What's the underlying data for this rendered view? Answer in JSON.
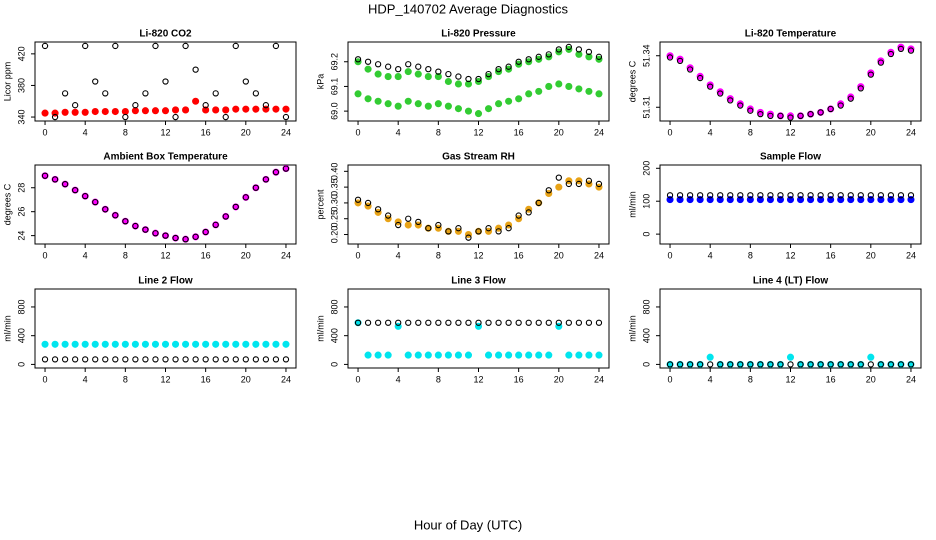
{
  "title": "HDP_140702  Average Diagnostics",
  "xlabel": "Hour of Day (UTC)",
  "chart_data": [
    {
      "type": "scatter",
      "title": "Li-820 CO2",
      "ylabel": "Licor ppm",
      "xlim": [
        -1,
        25
      ],
      "xticks": [
        0,
        4,
        8,
        12,
        16,
        20,
        24
      ],
      "ylim": [
        335,
        435
      ],
      "yticks": [
        340,
        380,
        420
      ],
      "x": [
        0,
        1,
        2,
        3,
        4,
        5,
        6,
        7,
        8,
        9,
        10,
        11,
        12,
        13,
        14,
        15,
        16,
        17,
        18,
        19,
        20,
        21,
        22,
        23,
        24
      ],
      "series": [
        {
          "color": "#ff0000",
          "filled": true,
          "values": [
            345,
            345,
            346,
            346,
            346,
            347,
            347,
            347,
            347,
            348,
            348,
            348,
            348,
            349,
            349,
            360,
            349,
            349,
            349,
            350,
            350,
            350,
            350,
            350,
            350
          ]
        },
        {
          "color": "#000000",
          "filled": false,
          "values": [
            430,
            340,
            370,
            355,
            430,
            385,
            370,
            430,
            340,
            355,
            370,
            430,
            385,
            340,
            430,
            400,
            355,
            370,
            340,
            430,
            385,
            370,
            355,
            430,
            340
          ]
        }
      ]
    },
    {
      "type": "scatter",
      "title": "Li-820 Pressure",
      "ylabel": "kPa",
      "xlim": [
        -1,
        25
      ],
      "xticks": [
        0,
        4,
        8,
        12,
        16,
        20,
        24
      ],
      "ylim": [
        68.96,
        69.28
      ],
      "yticks": [
        {
          "value": 69,
          "label": "69.0"
        },
        69.1,
        69.2
      ],
      "x": [
        0,
        1,
        2,
        3,
        4,
        5,
        6,
        7,
        8,
        9,
        10,
        11,
        12,
        13,
        14,
        15,
        16,
        17,
        18,
        19,
        20,
        21,
        22,
        23,
        24
      ],
      "series": [
        {
          "color": "#33cc33",
          "filled": true,
          "values": [
            69.2,
            69.17,
            69.15,
            69.14,
            69.14,
            69.16,
            69.15,
            69.14,
            69.14,
            69.12,
            69.11,
            69.11,
            69.12,
            69.14,
            69.16,
            69.17,
            69.19,
            69.2,
            69.21,
            69.22,
            69.24,
            69.25,
            69.23,
            69.22,
            69.21
          ]
        },
        {
          "color": "#33cc33",
          "filled": true,
          "values": [
            69.07,
            69.05,
            69.04,
            69.03,
            69.02,
            69.04,
            69.03,
            69.02,
            69.03,
            69.02,
            69.01,
            69.0,
            68.99,
            69.01,
            69.03,
            69.04,
            69.05,
            69.07,
            69.08,
            69.1,
            69.11,
            69.1,
            69.09,
            69.08,
            69.07
          ]
        },
        {
          "color": "#000000",
          "filled": false,
          "values": [
            69.21,
            69.2,
            69.19,
            69.18,
            69.17,
            69.19,
            69.18,
            69.17,
            69.16,
            69.15,
            69.14,
            69.13,
            69.13,
            69.15,
            69.17,
            69.18,
            69.2,
            69.21,
            69.22,
            69.23,
            69.25,
            69.26,
            69.25,
            69.24,
            69.22
          ]
        }
      ]
    },
    {
      "type": "scatter",
      "title": "Li-820 Temperature",
      "ylabel": "degrees C",
      "xlim": [
        -1,
        25
      ],
      "xticks": [
        0,
        4,
        8,
        12,
        16,
        20,
        24
      ],
      "ylim": [
        51.302,
        51.348
      ],
      "yticks": [
        51.31,
        51.34
      ],
      "x": [
        0,
        1,
        2,
        3,
        4,
        5,
        6,
        7,
        8,
        9,
        10,
        11,
        12,
        13,
        14,
        15,
        16,
        17,
        18,
        19,
        20,
        21,
        22,
        23,
        24
      ],
      "series": [
        {
          "color": "#ff00ff",
          "filled": true,
          "values": [
            51.34,
            51.338,
            51.333,
            51.328,
            51.323,
            51.319,
            51.315,
            51.312,
            51.309,
            51.307,
            51.306,
            51.305,
            51.305,
            51.305,
            51.306,
            51.307,
            51.309,
            51.312,
            51.316,
            51.322,
            51.33,
            51.337,
            51.342,
            51.345,
            51.344
          ]
        },
        {
          "color": "#000000",
          "filled": false,
          "values": [
            51.339,
            51.337,
            51.332,
            51.327,
            51.322,
            51.318,
            51.314,
            51.311,
            51.308,
            51.306,
            51.305,
            51.305,
            51.304,
            51.305,
            51.306,
            51.307,
            51.309,
            51.311,
            51.315,
            51.321,
            51.329,
            51.336,
            51.341,
            51.344,
            51.343
          ]
        }
      ]
    },
    {
      "type": "scatter",
      "title": "Ambient Box Temperature",
      "ylabel": "degrees C",
      "xlim": [
        -1,
        25
      ],
      "xticks": [
        0,
        4,
        8,
        12,
        16,
        20,
        24
      ],
      "ylim": [
        23.3,
        29.9
      ],
      "yticks": [
        24,
        26,
        28
      ],
      "x": [
        0,
        1,
        2,
        3,
        4,
        5,
        6,
        7,
        8,
        9,
        10,
        11,
        12,
        13,
        14,
        15,
        16,
        17,
        18,
        19,
        20,
        21,
        22,
        23,
        24
      ],
      "series": [
        {
          "color": "#ff00ff",
          "filled": true,
          "values": [
            29.0,
            28.7,
            28.3,
            27.8,
            27.3,
            26.8,
            26.2,
            25.7,
            25.2,
            24.8,
            24.5,
            24.2,
            24.0,
            23.8,
            23.7,
            23.9,
            24.3,
            24.9,
            25.6,
            26.4,
            27.2,
            28.0,
            28.7,
            29.3,
            29.6
          ]
        },
        {
          "color": "#000000",
          "filled": false,
          "values": [
            29.0,
            28.7,
            28.3,
            27.8,
            27.3,
            26.8,
            26.2,
            25.7,
            25.2,
            24.8,
            24.5,
            24.2,
            24.0,
            23.8,
            23.7,
            23.9,
            24.3,
            24.9,
            25.6,
            26.4,
            27.2,
            28.0,
            28.7,
            29.3,
            29.6
          ]
        }
      ]
    },
    {
      "type": "scatter",
      "title": "Gas Stream RH",
      "ylabel": "percent",
      "xlim": [
        -1,
        25
      ],
      "xticks": [
        0,
        4,
        8,
        12,
        16,
        20,
        24
      ],
      "ylim": [
        0.17,
        0.42
      ],
      "yticks": [
        {
          "value": 0.2,
          "label": "0.20"
        },
        0.25,
        {
          "value": 0.3,
          "label": "0.30"
        },
        0.35,
        {
          "value": 0.4,
          "label": "0.40"
        }
      ],
      "x": [
        0,
        1,
        2,
        3,
        4,
        5,
        6,
        7,
        8,
        9,
        10,
        11,
        12,
        13,
        14,
        15,
        16,
        17,
        18,
        19,
        20,
        21,
        22,
        23,
        24
      ],
      "series": [
        {
          "color": "#e8a317",
          "filled": true,
          "values": [
            0.3,
            0.29,
            0.27,
            0.25,
            0.24,
            0.23,
            0.23,
            0.22,
            0.22,
            0.21,
            0.21,
            0.2,
            0.21,
            0.21,
            0.22,
            0.23,
            0.25,
            0.28,
            0.3,
            0.33,
            0.35,
            0.37,
            0.37,
            0.36,
            0.35
          ]
        },
        {
          "color": "#000000",
          "filled": false,
          "values": [
            0.31,
            0.3,
            0.28,
            0.26,
            0.23,
            0.25,
            0.24,
            0.22,
            0.23,
            0.21,
            0.22,
            0.19,
            0.21,
            0.22,
            0.21,
            0.22,
            0.26,
            0.27,
            0.3,
            0.34,
            0.38,
            0.36,
            0.36,
            0.37,
            0.36
          ]
        }
      ]
    },
    {
      "type": "scatter",
      "title": "Sample Flow",
      "ylabel": "ml/min",
      "xlim": [
        -1,
        25
      ],
      "xticks": [
        0,
        4,
        8,
        12,
        16,
        20,
        24
      ],
      "ylim": [
        -30,
        210
      ],
      "yticks": [
        0,
        100,
        200
      ],
      "x": [
        0,
        1,
        2,
        3,
        4,
        5,
        6,
        7,
        8,
        9,
        10,
        11,
        12,
        13,
        14,
        15,
        16,
        17,
        18,
        19,
        20,
        21,
        22,
        23,
        24
      ],
      "series": [
        {
          "color": "#0000ff",
          "filled": true,
          "values": [
            105,
            105,
            105,
            105,
            105,
            105,
            105,
            105,
            105,
            105,
            105,
            105,
            105,
            105,
            105,
            105,
            105,
            105,
            105,
            105,
            105,
            105,
            105,
            105,
            105
          ]
        },
        {
          "color": "#000000",
          "filled": false,
          "values": [
            118,
            118,
            118,
            118,
            118,
            118,
            118,
            118,
            118,
            118,
            118,
            118,
            118,
            118,
            118,
            118,
            118,
            118,
            118,
            118,
            118,
            118,
            118,
            118,
            118
          ]
        }
      ]
    },
    {
      "type": "scatter",
      "title": "Line 2 Flow",
      "ylabel": "ml/min",
      "xlim": [
        -1,
        25
      ],
      "xticks": [
        0,
        4,
        8,
        12,
        16,
        20,
        24
      ],
      "ylim": [
        -50,
        1050
      ],
      "yticks": [
        0,
        400,
        800
      ],
      "x": [
        0,
        1,
        2,
        3,
        4,
        5,
        6,
        7,
        8,
        9,
        10,
        11,
        12,
        13,
        14,
        15,
        16,
        17,
        18,
        19,
        20,
        21,
        22,
        23,
        24
      ],
      "series": [
        {
          "color": "#00e5ee",
          "filled": true,
          "values": [
            280,
            280,
            280,
            280,
            280,
            280,
            280,
            280,
            280,
            280,
            280,
            280,
            280,
            280,
            280,
            280,
            280,
            280,
            280,
            280,
            280,
            280,
            280,
            280,
            280
          ]
        },
        {
          "color": "#000000",
          "filled": false,
          "values": [
            70,
            70,
            70,
            70,
            70,
            70,
            70,
            70,
            70,
            70,
            70,
            70,
            70,
            70,
            70,
            70,
            70,
            70,
            70,
            70,
            70,
            70,
            70,
            70,
            70
          ]
        }
      ]
    },
    {
      "type": "scatter",
      "title": "Line 3 Flow",
      "ylabel": "ml/min",
      "xlim": [
        -1,
        25
      ],
      "xticks": [
        0,
        4,
        8,
        12,
        16,
        20,
        24
      ],
      "ylim": [
        -50,
        1050
      ],
      "yticks": [
        0,
        400,
        800
      ],
      "x": [
        0,
        1,
        2,
        3,
        4,
        5,
        6,
        7,
        8,
        9,
        10,
        11,
        12,
        13,
        14,
        15,
        16,
        17,
        18,
        19,
        20,
        21,
        22,
        23,
        24
      ],
      "series": [
        {
          "color": "#00e5ee",
          "filled": true,
          "values": [
            580,
            130,
            130,
            130,
            530,
            130,
            130,
            130,
            130,
            130,
            130,
            130,
            530,
            130,
            130,
            130,
            130,
            130,
            130,
            130,
            530,
            130,
            130,
            130,
            130
          ]
        },
        {
          "color": "#000000",
          "filled": false,
          "values": [
            580,
            580,
            580,
            580,
            580,
            580,
            580,
            580,
            580,
            580,
            580,
            580,
            580,
            580,
            580,
            580,
            580,
            580,
            580,
            580,
            580,
            580,
            580,
            580,
            580
          ]
        }
      ]
    },
    {
      "type": "scatter",
      "title": "Line 4 (LT) Flow",
      "ylabel": "ml/min",
      "xlim": [
        -1,
        25
      ],
      "xticks": [
        0,
        4,
        8,
        12,
        16,
        20,
        24
      ],
      "ylim": [
        -50,
        1050
      ],
      "yticks": [
        0,
        400,
        800
      ],
      "x": [
        0,
        1,
        2,
        3,
        4,
        5,
        6,
        7,
        8,
        9,
        10,
        11,
        12,
        13,
        14,
        15,
        16,
        17,
        18,
        19,
        20,
        21,
        22,
        23,
        24
      ],
      "series": [
        {
          "color": "#00e5ee",
          "filled": true,
          "values": [
            0,
            0,
            0,
            0,
            100,
            0,
            0,
            0,
            0,
            0,
            0,
            0,
            100,
            0,
            0,
            0,
            0,
            0,
            0,
            0,
            100,
            0,
            0,
            0,
            0
          ]
        },
        {
          "color": "#000000",
          "filled": false,
          "values": [
            0,
            0,
            0,
            0,
            0,
            0,
            0,
            0,
            0,
            0,
            0,
            0,
            0,
            0,
            0,
            0,
            0,
            0,
            0,
            0,
            0,
            0,
            0,
            0,
            0
          ]
        }
      ]
    }
  ]
}
